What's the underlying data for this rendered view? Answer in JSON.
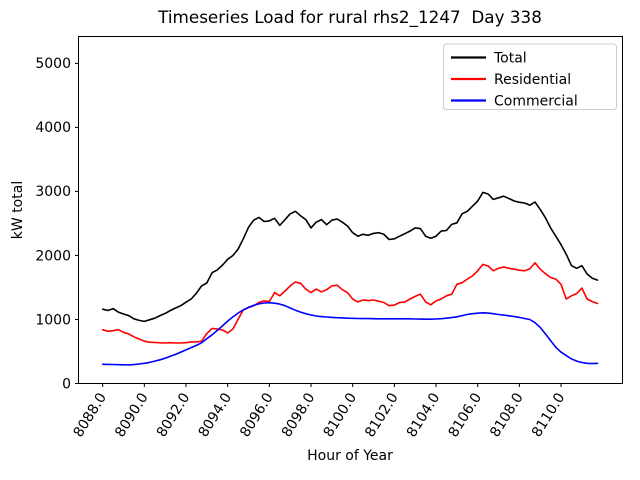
{
  "chart_data": {
    "type": "line",
    "title": "Timeseries Load for rural rhs2_1247  Day 338",
    "xlabel": "Hour of Year",
    "ylabel": "kW total",
    "xlim": [
      8086.84,
      8112.95
    ],
    "ylim": [
      0,
      5420
    ],
    "grid": false,
    "legend_position": "upper right",
    "x_start": 8088.0,
    "x_step": 0.25,
    "x_ticks": [
      8088,
      8090,
      8092,
      8094,
      8096,
      8098,
      8100,
      8102,
      8104,
      8106,
      8108,
      8110
    ],
    "x_tick_labels": [
      "8088.0",
      "8090.0",
      "8092.0",
      "8094.0",
      "8096.0",
      "8098.0",
      "8100.0",
      "8102.0",
      "8104.0",
      "8106.0",
      "8108.0",
      "8110.0"
    ],
    "y_ticks": [
      0,
      1000,
      2000,
      3000,
      4000,
      5000
    ],
    "y_tick_labels": [
      "0",
      "1000",
      "2000",
      "3000",
      "4000",
      "5000"
    ],
    "series": [
      {
        "name": "Total",
        "color": "#000000",
        "values": [
          1160,
          1140,
          1170,
          1115,
          1085,
          1060,
          1010,
          985,
          970,
          995,
          1020,
          1060,
          1095,
          1140,
          1180,
          1215,
          1270,
          1320,
          1410,
          1525,
          1570,
          1730,
          1775,
          1850,
          1940,
          2000,
          2100,
          2260,
          2440,
          2550,
          2595,
          2530,
          2540,
          2580,
          2470,
          2560,
          2650,
          2690,
          2620,
          2560,
          2430,
          2520,
          2560,
          2480,
          2550,
          2570,
          2520,
          2460,
          2355,
          2300,
          2330,
          2315,
          2345,
          2355,
          2330,
          2250,
          2260,
          2300,
          2340,
          2380,
          2430,
          2420,
          2300,
          2270,
          2300,
          2380,
          2390,
          2485,
          2510,
          2650,
          2690,
          2770,
          2850,
          2985,
          2960,
          2875,
          2900,
          2925,
          2890,
          2850,
          2830,
          2820,
          2785,
          2835,
          2720,
          2590,
          2430,
          2300,
          2170,
          2020,
          1840,
          1800,
          1840,
          1710,
          1645,
          1615
        ]
      },
      {
        "name": "Residential",
        "color": "#ff0000",
        "values": [
          840,
          815,
          825,
          840,
          800,
          775,
          730,
          695,
          660,
          645,
          640,
          635,
          633,
          638,
          633,
          633,
          638,
          650,
          650,
          660,
          780,
          860,
          850,
          835,
          790,
          850,
          1005,
          1150,
          1185,
          1215,
          1265,
          1290,
          1280,
          1420,
          1370,
          1445,
          1525,
          1585,
          1565,
          1475,
          1420,
          1475,
          1430,
          1465,
          1525,
          1535,
          1465,
          1420,
          1320,
          1275,
          1305,
          1295,
          1305,
          1285,
          1265,
          1215,
          1225,
          1265,
          1275,
          1320,
          1360,
          1395,
          1275,
          1230,
          1290,
          1320,
          1370,
          1395,
          1550,
          1575,
          1630,
          1680,
          1760,
          1860,
          1835,
          1760,
          1800,
          1820,
          1800,
          1785,
          1770,
          1760,
          1790,
          1885,
          1785,
          1715,
          1655,
          1630,
          1550,
          1320,
          1370,
          1405,
          1490,
          1320,
          1280,
          1250
        ]
      },
      {
        "name": "Commercial",
        "color": "#0000ff",
        "values": [
          300,
          298,
          296,
          294,
          292,
          290,
          295,
          305,
          315,
          330,
          350,
          370,
          395,
          425,
          455,
          490,
          525,
          560,
          595,
          635,
          700,
          760,
          830,
          900,
          975,
          1040,
          1100,
          1150,
          1190,
          1220,
          1245,
          1258,
          1262,
          1255,
          1240,
          1215,
          1180,
          1145,
          1115,
          1090,
          1070,
          1055,
          1045,
          1038,
          1032,
          1028,
          1024,
          1020,
          1018,
          1016,
          1014,
          1013,
          1012,
          1011,
          1010,
          1010,
          1010,
          1010,
          1010,
          1010,
          1008,
          1006,
          1005,
          1005,
          1008,
          1012,
          1020,
          1030,
          1042,
          1060,
          1080,
          1090,
          1098,
          1105,
          1100,
          1090,
          1078,
          1068,
          1058,
          1045,
          1032,
          1015,
          1000,
          950,
          876,
          775,
          670,
          565,
          490,
          436,
          385,
          350,
          328,
          316,
          311,
          315
        ]
      }
    ]
  }
}
